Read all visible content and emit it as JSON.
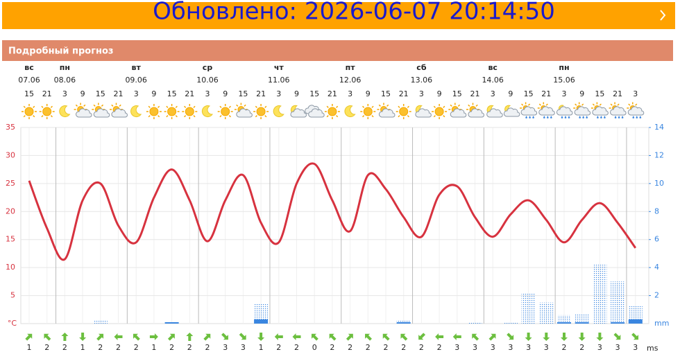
{
  "banner": {
    "text": "Обновлено: 2026-06-07 20:14:50"
  },
  "section_title": "Подробный прогноз",
  "chart_data": {
    "type": "line",
    "categories": [
      "15",
      "21",
      "3",
      "9",
      "15",
      "21",
      "3",
      "9",
      "15",
      "21",
      "3",
      "9",
      "15",
      "21",
      "3",
      "9",
      "15",
      "21",
      "3",
      "9",
      "15",
      "21",
      "3",
      "9",
      "15",
      "21",
      "3",
      "9",
      "15",
      "21",
      "3",
      "9",
      "15",
      "21",
      "3"
    ],
    "weekdays": [
      "вс",
      null,
      "пн",
      null,
      null,
      null,
      "вт",
      null,
      null,
      null,
      "ср",
      null,
      null,
      null,
      "чт",
      null,
      null,
      null,
      "пт",
      null,
      null,
      null,
      "сб",
      null,
      null,
      null,
      "вс",
      null,
      null,
      null,
      "пн",
      null,
      null,
      null,
      null
    ],
    "dates": [
      "07.06",
      null,
      "08.06",
      null,
      null,
      null,
      "09.06",
      null,
      null,
      null,
      "10.06",
      null,
      null,
      null,
      "11.06",
      null,
      null,
      null,
      "12.06",
      null,
      null,
      null,
      "13.06",
      null,
      null,
      null,
      "14.06",
      null,
      null,
      null,
      "15.06",
      null,
      null,
      null,
      null
    ],
    "conditions": [
      "sun",
      "sun",
      "moon",
      "partly",
      "partly",
      "partly",
      "moon",
      "sun",
      "sun",
      "sun",
      "moon",
      "sun",
      "partly",
      "sun",
      "moon",
      "cloud-night",
      "cloud",
      "sun",
      "moon",
      "sun",
      "partly",
      "sun",
      "cloud-night",
      "sun",
      "partly",
      "partly",
      "cloud-night",
      "partly-night",
      "rain",
      "rain",
      "rain-night",
      "rain",
      "rain",
      "rain",
      "rain"
    ],
    "series": [
      {
        "color": "#d7323f",
        "values": [
          25.5,
          17,
          11.5,
          22,
          25,
          17.5,
          14.5,
          22.5,
          27.5,
          22,
          14.7,
          22,
          26.5,
          18,
          14.5,
          25,
          28.5,
          22,
          16.5,
          26.5,
          24,
          19,
          15.5,
          23,
          24.5,
          19,
          15.5,
          19.5,
          22,
          18.5,
          14.5,
          18.5,
          21.5,
          18,
          13.5
        ]
      },
      {
        "color": "#3a86e0",
        "axis": "y2",
        "style": "dotted",
        "values": [
          0,
          0,
          0,
          0,
          0.2,
          0,
          0,
          0,
          0,
          0,
          0,
          0,
          0,
          1.4,
          0,
          0,
          0,
          0,
          0,
          0,
          0,
          0.2,
          0,
          0,
          0,
          0.1,
          0,
          0.1,
          2.2,
          1.5,
          0.6,
          0.7,
          4.2,
          3.0,
          1.3
        ]
      },
      {
        "color": "#3a86e0",
        "axis": "y2",
        "style": "solid",
        "values": [
          0,
          0,
          0,
          0,
          0,
          0,
          0,
          0,
          0.1,
          0,
          0,
          0,
          0,
          0.3,
          0,
          0,
          0,
          0,
          0,
          0,
          0,
          0.1,
          0,
          0,
          0,
          0,
          0,
          0,
          0,
          0,
          0.1,
          0.1,
          0,
          0.1,
          0.3
        ]
      }
    ],
    "ylim": [
      0,
      35
    ],
    "yticks": [
      5,
      10,
      15,
      20,
      25,
      30,
      35
    ],
    "y_unit": "°C",
    "y2lim": [
      0,
      14
    ],
    "y2ticks": [
      2,
      4,
      6,
      8,
      10,
      12,
      14
    ],
    "y2_unit": "mm",
    "wind_speed": [
      1,
      2,
      2,
      1,
      2,
      2,
      2,
      1,
      2,
      2,
      2,
      3,
      3,
      1,
      2,
      2,
      0,
      2,
      2,
      2,
      2,
      2,
      2,
      2,
      3,
      3,
      3,
      3,
      3,
      3,
      2,
      2,
      3,
      3,
      3
    ],
    "wind_direction": [
      45,
      315,
      0,
      180,
      45,
      270,
      315,
      90,
      45,
      0,
      45,
      135,
      135,
      180,
      270,
      270,
      315,
      315,
      45,
      315,
      315,
      315,
      225,
      270,
      270,
      315,
      45,
      135,
      180,
      180,
      180,
      180,
      180,
      135,
      135
    ],
    "wind_unit": "ms",
    "wind_color": "#6cbf3f"
  }
}
